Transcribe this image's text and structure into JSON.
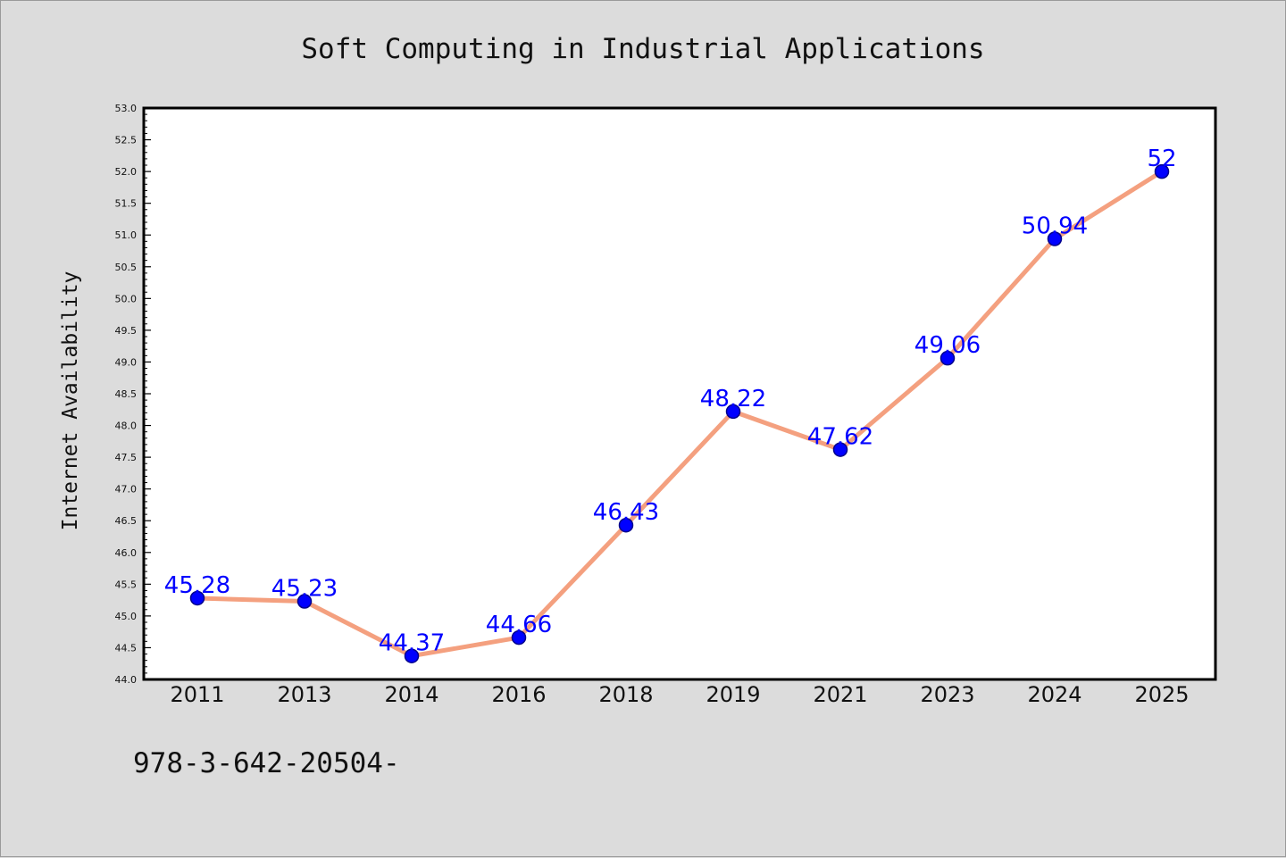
{
  "chart_data": {
    "type": "line",
    "title": "Soft Computing in Industrial Applications",
    "xlabel": "",
    "ylabel": "Internet Availability",
    "categories": [
      "2011",
      "2013",
      "2014",
      "2016",
      "2018",
      "2019",
      "2021",
      "2023",
      "2024",
      "2025"
    ],
    "series": [
      {
        "values": [
          45.28,
          45.23,
          44.37,
          44.66,
          46.43,
          48.22,
          47.62,
          49.06,
          50.94,
          52
        ],
        "labels": [
          "45.28",
          "45.23",
          "44.37",
          "44.66",
          "46.43",
          "48.22",
          "47.62",
          "49.06",
          "50.94",
          "52"
        ]
      }
    ],
    "ylim": [
      44.0,
      53.0
    ],
    "ytick_step": 0.5,
    "grid": false,
    "legend": "none",
    "colors": {
      "line": "#f4a07f",
      "marker": "#0000ff",
      "marker_edge": "#00008b",
      "data_label": "#0000ff",
      "plot_background": "#ffffff",
      "figure_background": "#dcdcdc"
    }
  },
  "footer": {
    "text": "978-3-642-20504-"
  }
}
